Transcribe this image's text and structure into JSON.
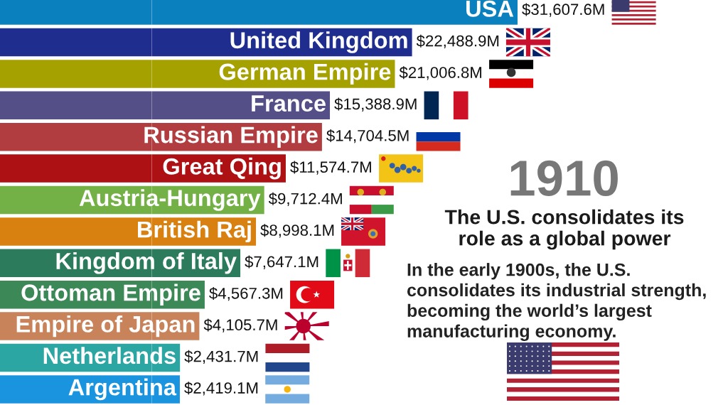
{
  "chart_data": {
    "type": "bar",
    "orientation": "horizontal",
    "categories": [
      "USA",
      "United Kingdom",
      "German Empire",
      "France",
      "Russian Empire",
      "Great Qing",
      "Austria-Hungary",
      "British Raj",
      "Kingdom of Italy",
      "Ottoman Empire",
      "Empire of Japan",
      "Netherlands",
      "Argentina"
    ],
    "values": [
      31607.6,
      22488.9,
      21006.8,
      15388.9,
      14704.5,
      11574.7,
      9712.4,
      8998.1,
      7647.1,
      4567.3,
      4105.7,
      2431.7,
      2419.1
    ],
    "value_labels": [
      "$31,607.6M",
      "$22,488.9M",
      "$21,006.8M",
      "$15,388.9M",
      "$14,704.5M",
      "$11,574.7M",
      "$9,712.4M",
      "$8,998.1M",
      "$7,647.1M",
      "$4,567.3M",
      "$4,105.7M",
      "$2,431.7M",
      "$2,419.1M"
    ],
    "colors": [
      "#0b80bf",
      "#1f2d8f",
      "#a5a100",
      "#544f87",
      "#b23d40",
      "#ad1114",
      "#73b045",
      "#d98110",
      "#2b7b5c",
      "#3d8857",
      "#c8835b",
      "#2ca6a2",
      "#1b94e0"
    ],
    "tick_labels": "y",
    "annotations": [
      "1910",
      "The U.S. consolidates its\nrole as a global power",
      "In the early 1900s, the U.S.\nconsolidates its industrial strength,\nbecoming the world’s largest\nmanufacturing economy."
    ]
  }
}
